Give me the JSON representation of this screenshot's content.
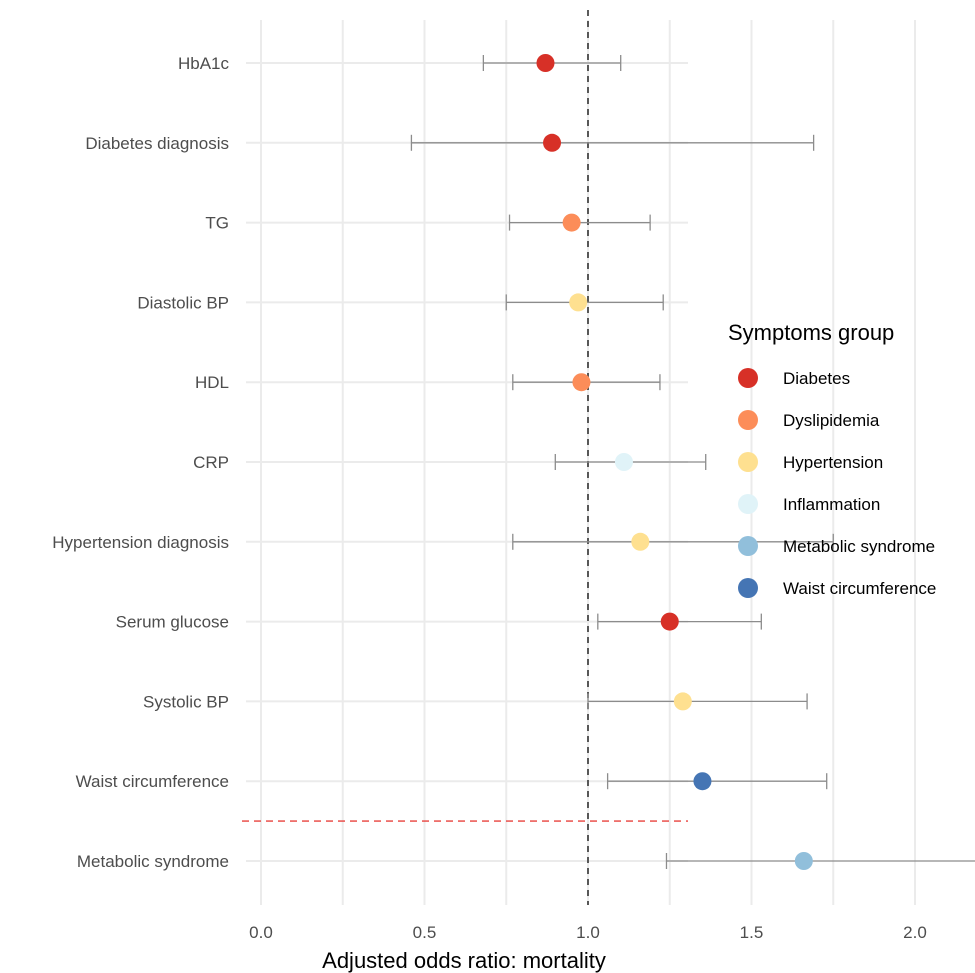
{
  "chart_data": {
    "type": "scatter",
    "subtype": "forest-plot",
    "xlabel": "Adjusted odds ratio: mortality",
    "xlim": [
      -0.05,
      2.6
    ],
    "xticks": [
      0.0,
      0.5,
      1.0,
      1.5,
      2.0
    ],
    "xtick_labels": [
      "0.0",
      "0.5",
      "1.0",
      "1.5",
      "2.0"
    ],
    "reference_line": 1.0,
    "grid": true,
    "legend": {
      "title": "Symptoms group",
      "placement": "right",
      "entries": [
        {
          "label": "Diabetes",
          "color": "#d73027"
        },
        {
          "label": "Dyslipidemia",
          "color": "#fc8d59"
        },
        {
          "label": "Hypertension",
          "color": "#fee090"
        },
        {
          "label": "Inflammation",
          "color": "#e0f3f8"
        },
        {
          "label": "Metabolic syndrome",
          "color": "#91bfdb"
        },
        {
          "label": "Waist circumference",
          "color": "#4575b4"
        }
      ]
    },
    "rows": [
      {
        "label": "HbA1c",
        "or": 0.87,
        "low": 0.68,
        "high": 1.1,
        "group": "Diabetes"
      },
      {
        "label": "Diabetes diagnosis",
        "or": 0.89,
        "low": 0.46,
        "high": 1.69,
        "group": "Diabetes"
      },
      {
        "label": "TG",
        "or": 0.95,
        "low": 0.76,
        "high": 1.19,
        "group": "Dyslipidemia"
      },
      {
        "label": "Diastolic BP",
        "or": 0.97,
        "low": 0.75,
        "high": 1.23,
        "group": "Hypertension"
      },
      {
        "label": "HDL",
        "or": 0.98,
        "low": 0.77,
        "high": 1.22,
        "group": "Dyslipidemia"
      },
      {
        "label": "CRP",
        "or": 1.11,
        "low": 0.9,
        "high": 1.36,
        "group": "Inflammation"
      },
      {
        "label": "Hypertension diagnosis",
        "or": 1.16,
        "low": 0.77,
        "high": 1.75,
        "group": "Hypertension"
      },
      {
        "label": "Serum glucose",
        "or": 1.25,
        "low": 1.03,
        "high": 1.53,
        "group": "Diabetes"
      },
      {
        "label": "Systolic BP",
        "or": 1.29,
        "low": 1.0,
        "high": 1.67,
        "group": "Hypertension"
      },
      {
        "label": "Waist circumference",
        "or": 1.35,
        "low": 1.06,
        "high": 1.73,
        "group": "Waist circumference"
      },
      {
        "label": "Metabolic syndrome",
        "or": 1.66,
        "low": 1.24,
        "high": 2.22,
        "group": "Metabolic syndrome"
      }
    ],
    "separator_after_row": 10
  }
}
